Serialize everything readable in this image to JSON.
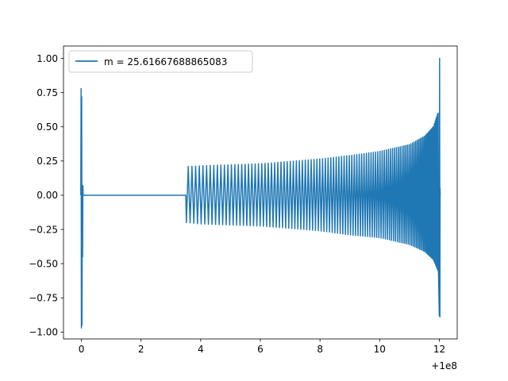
{
  "chart_data": {
    "type": "line",
    "title": "",
    "xlabel": "",
    "ylabel": "",
    "x_offset_text": "+1e8",
    "xlim": [
      -0.6,
      12.6
    ],
    "ylim": [
      -1.05,
      1.09
    ],
    "x_ticks": [
      {
        "value": 0,
        "label": "0"
      },
      {
        "value": 2,
        "label": "2"
      },
      {
        "value": 4,
        "label": "4"
      },
      {
        "value": 6,
        "label": "6"
      },
      {
        "value": 8,
        "label": "8"
      },
      {
        "value": 10,
        "label": "10"
      },
      {
        "value": 12,
        "label": "12"
      }
    ],
    "y_ticks": [
      {
        "value": 1.0,
        "label": "1.00"
      },
      {
        "value": 0.75,
        "label": "0.75"
      },
      {
        "value": 0.5,
        "label": "0.50"
      },
      {
        "value": 0.25,
        "label": "0.25"
      },
      {
        "value": 0.0,
        "label": "0.00"
      },
      {
        "value": -0.25,
        "label": "−0.25"
      },
      {
        "value": -0.5,
        "label": "−0.50"
      },
      {
        "value": -0.75,
        "label": "−0.75"
      },
      {
        "value": -1.0,
        "label": "−1.00"
      }
    ],
    "grid": false,
    "legend_position": "top-left",
    "series": [
      {
        "name": "m = 25.61667688865083",
        "color": "#1f77b4",
        "points": [
          [
            -0.02,
            0.0
          ],
          [
            -0.01,
            0.78
          ],
          [
            0.0,
            -0.97
          ],
          [
            0.01,
            0.72
          ],
          [
            0.02,
            -0.95
          ],
          [
            0.03,
            0.06
          ],
          [
            0.04,
            -0.45
          ],
          [
            0.05,
            0.07
          ],
          [
            0.06,
            0.0
          ],
          [
            0.08,
            0.0
          ],
          [
            3.5,
            0.0
          ],
          [
            3.52,
            -0.2
          ],
          [
            3.55,
            0.21
          ],
          [
            4.0,
            -0.21
          ],
          [
            4.0,
            0.215
          ],
          [
            6.0,
            -0.225
          ],
          [
            6.0,
            0.23
          ],
          [
            8.0,
            -0.26
          ],
          [
            8.0,
            0.265
          ],
          [
            9.0,
            -0.29
          ],
          [
            9.0,
            0.29
          ],
          [
            10.0,
            -0.31
          ],
          [
            10.0,
            0.32
          ],
          [
            11.0,
            -0.36
          ],
          [
            11.0,
            0.37
          ],
          [
            11.5,
            -0.41
          ],
          [
            11.5,
            0.43
          ],
          [
            11.8,
            -0.47
          ],
          [
            11.8,
            0.5
          ],
          [
            11.95,
            -0.55
          ],
          [
            11.95,
            0.6
          ],
          [
            12.0,
            -0.88
          ],
          [
            12.01,
            1.0
          ],
          [
            12.02,
            -0.89
          ]
        ]
      }
    ]
  }
}
